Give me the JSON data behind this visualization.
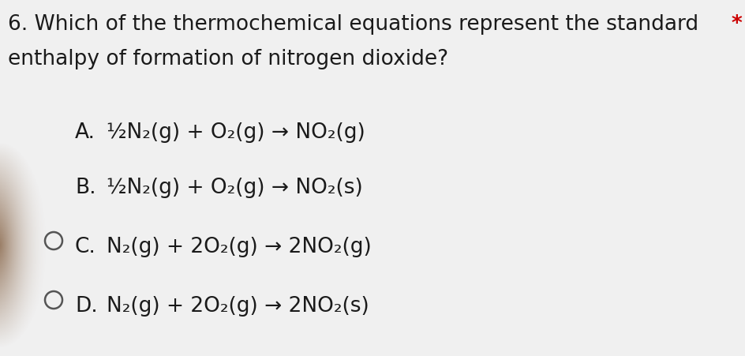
{
  "background_color": "#f0f0f0",
  "title_line1": "6. Which of the thermochemical equations represent the standard ",
  "title_star": "*",
  "title_line2": "enthalpy of formation of nitrogen dioxide?",
  "title_color": "#1a1a1a",
  "star_color": "#cc0000",
  "title_fontsize": 19,
  "options": [
    {
      "label": "A.",
      "equation": "½N₂(g) + O₂(g) → NO₂(g)",
      "has_circle": false
    },
    {
      "label": "B.",
      "equation": "½N₂(g) + O₂(g) → NO₂(s)",
      "has_circle": false
    },
    {
      "label": "C.",
      "equation": "N₂(g) + 2O₂(g) → 2NO₂(g)",
      "has_circle": true
    },
    {
      "label": "D.",
      "equation": "N₂(g) + 2O₂(g) → 2NO₂(s)",
      "has_circle": true
    }
  ],
  "option_fontsize": 19,
  "option_color": "#1a1a1a",
  "finger_color": "#8a6a50"
}
